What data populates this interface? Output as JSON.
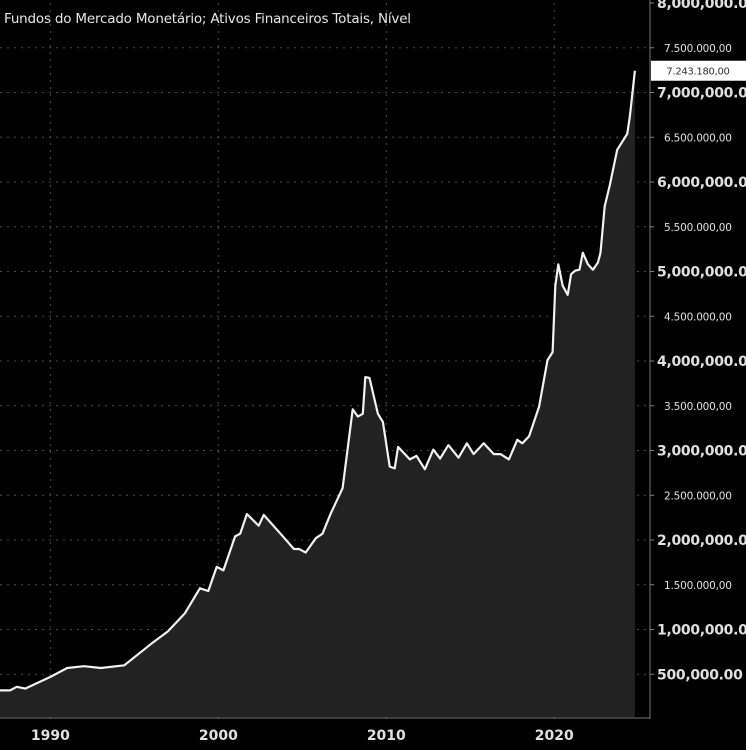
{
  "chart_data": {
    "type": "area",
    "title": "Fundos do Mercado Monetário; Ativos Financeiros Totais, Nível",
    "xlabel": "",
    "ylabel": "",
    "xlim": [
      1987.0,
      2025.7
    ],
    "ylim": [
      0,
      8000000
    ],
    "grid": true,
    "colors": {
      "background": "#000000",
      "line": "#f2f2f2",
      "fill": "#222222",
      "grid": "#4a4a4a",
      "text": "#e0e0e0",
      "label_box": "#ffffff"
    },
    "x_ticks": [
      {
        "value": 1990,
        "label": "1990"
      },
      {
        "value": 2000,
        "label": "2000"
      },
      {
        "value": 2010,
        "label": "2010"
      },
      {
        "value": 2020,
        "label": "2020"
      }
    ],
    "y_ticks": [
      {
        "value": 8000000,
        "label": "8,000,000.00",
        "major": true
      },
      {
        "value": 7500000,
        "label": "7.500.000,00",
        "major": false
      },
      {
        "value": 7000000,
        "label": "7,000,000.00",
        "major": true
      },
      {
        "value": 6500000,
        "label": "6.500.000,00",
        "major": false
      },
      {
        "value": 6000000,
        "label": "6,000,000.00",
        "major": true
      },
      {
        "value": 5500000,
        "label": "5.500.000,00",
        "major": false
      },
      {
        "value": 5000000,
        "label": "5,000,000.00",
        "major": true
      },
      {
        "value": 4500000,
        "label": "4.500.000,00",
        "major": false
      },
      {
        "value": 4000000,
        "label": "4,000,000.00",
        "major": true
      },
      {
        "value": 3500000,
        "label": "3.500.000,00",
        "major": false
      },
      {
        "value": 3000000,
        "label": "3,000,000.00",
        "major": true
      },
      {
        "value": 2500000,
        "label": "2.500.000,00",
        "major": false
      },
      {
        "value": 2000000,
        "label": "2,000,000.00",
        "major": true
      },
      {
        "value": 1500000,
        "label": "1.500.000,00",
        "major": false
      },
      {
        "value": 1000000,
        "label": "1,000,000.00",
        "major": true
      },
      {
        "value": 500000,
        "label": "500,000.00",
        "major": true
      }
    ],
    "last_value": {
      "value": 7243180,
      "label": "7.243.180,00"
    },
    "series": [
      {
        "x": [
          1987.0,
          1987.6,
          1988.0,
          1988.5,
          1990.0,
          1991.0,
          1992.0,
          1993.0,
          1994.4,
          1996.0,
          1997.0,
          1998.0,
          1998.9,
          1999.4,
          1999.9,
          2000.3,
          2001.0,
          2001.3,
          2001.7,
          2002.4,
          2002.7,
          2003.7,
          2004.5,
          2004.8,
          2005.2,
          2005.8,
          2006.2,
          2006.7,
          2007.1,
          2007.4,
          2008.0,
          2008.3,
          2008.6,
          2008.75,
          2009.0,
          2009.5,
          2009.8,
          2010.2,
          2010.5,
          2010.7,
          2011.4,
          2011.8,
          2012.3,
          2012.8,
          2013.2,
          2013.7,
          2014.3,
          2014.8,
          2015.2,
          2015.8,
          2016.4,
          2016.8,
          2017.3,
          2017.8,
          2018.1,
          2018.5,
          2019.1,
          2019.6,
          2019.9,
          2020.06,
          2020.24,
          2020.5,
          2020.8,
          2021.0,
          2021.25,
          2021.5,
          2021.7,
          2022.0,
          2022.3,
          2022.6,
          2022.75,
          2023.0,
          2023.3,
          2023.75,
          2024.35,
          2024.5,
          2024.8
        ],
        "values": [
          320000,
          320000,
          360000,
          340000,
          470000,
          570000,
          590000,
          570000,
          600000,
          840000,
          980000,
          1180000,
          1460000,
          1430000,
          1700000,
          1660000,
          2040000,
          2070000,
          2290000,
          2160000,
          2280000,
          2070000,
          1900000,
          1900000,
          1860000,
          2020000,
          2070000,
          2300000,
          2460000,
          2580000,
          3460000,
          3380000,
          3410000,
          3820000,
          3810000,
          3410000,
          3320000,
          2820000,
          2800000,
          3040000,
          2900000,
          2940000,
          2790000,
          3010000,
          2910000,
          3060000,
          2920000,
          3080000,
          2960000,
          3080000,
          2960000,
          2960000,
          2900000,
          3120000,
          3080000,
          3160000,
          3490000,
          4010000,
          4100000,
          4840000,
          5080000,
          4840000,
          4740000,
          4970000,
          5010000,
          5020000,
          5210000,
          5080000,
          5020000,
          5100000,
          5210000,
          5730000,
          5960000,
          6360000,
          6540000,
          6730000,
          7243180
        ]
      }
    ]
  }
}
